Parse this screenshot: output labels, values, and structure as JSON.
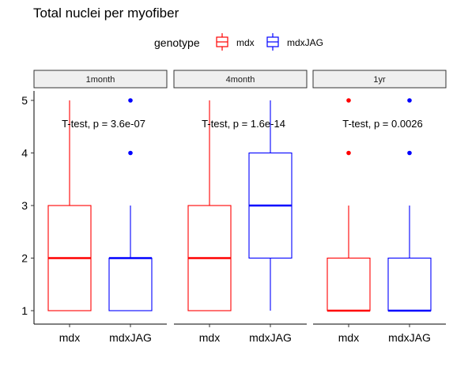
{
  "chart_data": {
    "type": "box",
    "title": "Total nuclei per myofiber",
    "legend": {
      "title": "genotype",
      "position": "top",
      "entries": [
        {
          "name": "mdx",
          "color": "#ff0000"
        },
        {
          "name": "mdxJAG",
          "color": "#0000ff"
        }
      ]
    },
    "ylim": [
      1,
      5
    ],
    "yticks": [
      "1",
      "2",
      "3",
      "4",
      "5"
    ],
    "grid": false,
    "panels": [
      {
        "strip": "1month",
        "annotation": "T-test, p = 3.6e-07",
        "boxes": [
          {
            "category": "mdx",
            "series": "mdx",
            "min": 1,
            "q1": 1,
            "median": 2,
            "q3": 3,
            "max": 5,
            "outliers": []
          },
          {
            "category": "mdxJAG",
            "series": "mdxJAG",
            "min": 1,
            "q1": 1,
            "median": 2,
            "q3": 2,
            "max": 3,
            "outliers": [
              4,
              5
            ]
          }
        ]
      },
      {
        "strip": "4month",
        "annotation": "T-test, p = 1.6e-14",
        "boxes": [
          {
            "category": "mdx",
            "series": "mdx",
            "min": 1,
            "q1": 1,
            "median": 2,
            "q3": 3,
            "max": 5,
            "outliers": []
          },
          {
            "category": "mdxJAG",
            "series": "mdxJAG",
            "min": 1,
            "q1": 2,
            "median": 3,
            "q3": 4,
            "max": 5,
            "outliers": []
          }
        ]
      },
      {
        "strip": "1yr",
        "annotation": "T-test, p = 0.0026",
        "boxes": [
          {
            "category": "mdx",
            "series": "mdx",
            "min": 1,
            "q1": 1,
            "median": 1,
            "q3": 2,
            "max": 3,
            "outliers": [
              4,
              5
            ]
          },
          {
            "category": "mdxJAG",
            "series": "mdxJAG",
            "min": 1,
            "q1": 1,
            "median": 1,
            "q3": 2,
            "max": 3,
            "outliers": [
              4,
              5
            ]
          }
        ]
      }
    ]
  }
}
